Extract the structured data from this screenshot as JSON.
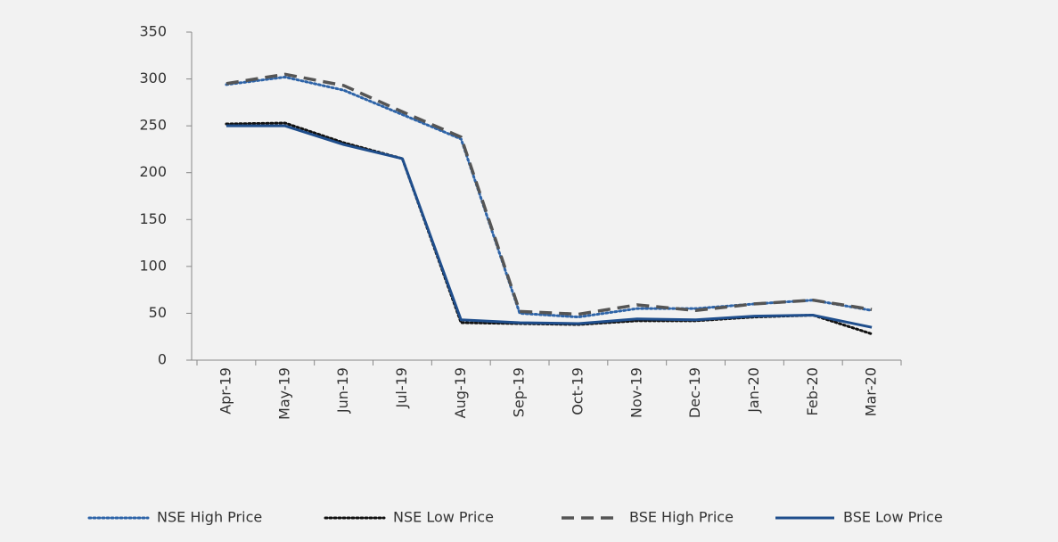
{
  "chart_data": {
    "type": "line",
    "categories": [
      "Apr-19",
      "May-19",
      "Jun-19",
      "Jul-19",
      "Aug-19",
      "Sep-19",
      "Oct-19",
      "Nov-19",
      "Dec-19",
      "Jan-20",
      "Feb-20",
      "Mar-20"
    ],
    "series": [
      {
        "name": "NSE High Price",
        "color": "#2e64a8",
        "dash": "dotted",
        "values": [
          294,
          302,
          288,
          262,
          236,
          50,
          46,
          55,
          55,
          60,
          64,
          53
        ]
      },
      {
        "name": "NSE Low Price",
        "color": "#111111",
        "dash": "dotted",
        "values": [
          252,
          253,
          232,
          215,
          40,
          39,
          38,
          42,
          42,
          46,
          48,
          28
        ]
      },
      {
        "name": "BSE High Price",
        "color": "#555555",
        "dash": "dashed",
        "values": [
          295,
          305,
          293,
          265,
          238,
          52,
          49,
          59,
          53,
          60,
          64,
          54
        ]
      },
      {
        "name": "BSE Low Price",
        "color": "#1f4e8c",
        "dash": "solid",
        "values": [
          250,
          250,
          230,
          215,
          43,
          40,
          39,
          44,
          43,
          47,
          48,
          35
        ]
      }
    ],
    "ylim": [
      0,
      350
    ],
    "yticks": [
      0,
      50,
      100,
      150,
      200,
      250,
      300,
      350
    ],
    "grid": false,
    "legend": "bottom"
  }
}
